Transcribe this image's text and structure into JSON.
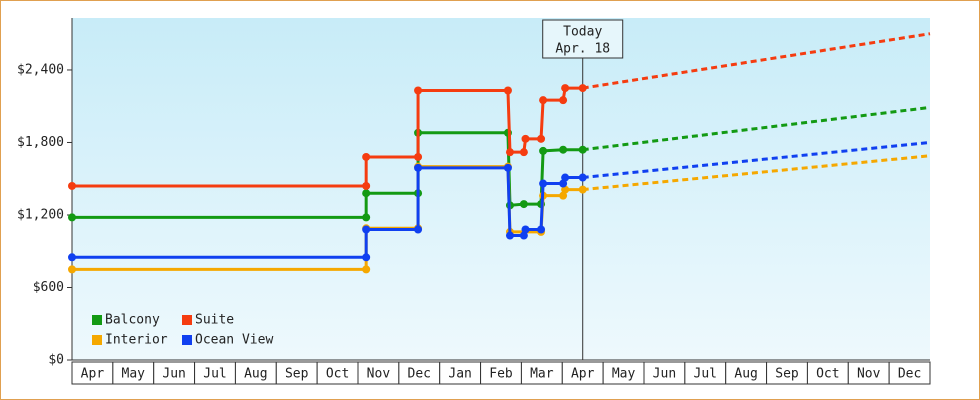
{
  "chart_data": {
    "type": "line",
    "annotation": [
      "Today",
      "Apr. 18"
    ],
    "categories": [
      "Apr",
      "May",
      "Jun",
      "Jul",
      "Aug",
      "Sep",
      "Oct",
      "Nov",
      "Dec",
      "Jan",
      "Feb",
      "Mar",
      "Apr",
      "May",
      "Jun",
      "Jul",
      "Aug",
      "Sep",
      "Oct",
      "Nov",
      "Dec"
    ],
    "xlim": [
      0,
      21
    ],
    "ylim": [
      0,
      2830
    ],
    "yticks": [
      {
        "value": 0,
        "label": "$0"
      },
      {
        "value": 600,
        "label": "$600"
      },
      {
        "value": 1200,
        "label": "$1,200"
      },
      {
        "value": 1800,
        "label": "$1,800"
      },
      {
        "value": 2400,
        "label": "$2,400"
      }
    ],
    "series": [
      {
        "name": "Balcony",
        "color": "#139a13",
        "x": [
          0,
          7.2,
          7.2,
          8.47,
          8.47,
          10.67,
          10.72,
          11.06,
          11.48,
          11.53,
          12.02,
          12.5
        ],
        "values": [
          1180,
          1180,
          1380,
          1380,
          1880,
          1880,
          1280,
          1290,
          1290,
          1730,
          1740,
          1740
        ],
        "forecast": {
          "x": [
            12.5,
            21
          ],
          "values": [
            1740,
            2090
          ]
        }
      },
      {
        "name": "Suite",
        "color": "#f53c10",
        "x": [
          0,
          7.2,
          7.2,
          8.47,
          8.47,
          10.67,
          10.72,
          11.06,
          11.1,
          11.48,
          11.53,
          12.02,
          12.07,
          12.5
        ],
        "values": [
          1440,
          1440,
          1680,
          1680,
          2230,
          2230,
          1720,
          1720,
          1830,
          1830,
          2150,
          2150,
          2250,
          2250
        ],
        "forecast": {
          "x": [
            12.5,
            21
          ],
          "values": [
            2250,
            2700
          ]
        }
      },
      {
        "name": "Interior",
        "color": "#f5a800",
        "x": [
          0,
          7.2,
          7.2,
          8.47,
          8.47,
          10.67,
          10.72,
          11.48,
          11.53,
          12.02,
          12.07,
          12.5
        ],
        "values": [
          750,
          750,
          1090,
          1090,
          1600,
          1600,
          1060,
          1060,
          1360,
          1360,
          1410,
          1410
        ],
        "forecast": {
          "x": [
            12.5,
            21
          ],
          "values": [
            1410,
            1690
          ]
        }
      },
      {
        "name": "Ocean View",
        "color": "#1040f0",
        "x": [
          0,
          7.2,
          7.2,
          8.47,
          8.47,
          10.67,
          10.72,
          11.06,
          11.1,
          11.48,
          11.53,
          12.02,
          12.07,
          12.5
        ],
        "values": [
          850,
          850,
          1080,
          1080,
          1590,
          1590,
          1030,
          1030,
          1080,
          1080,
          1460,
          1460,
          1510,
          1510
        ],
        "forecast": {
          "x": [
            12.5,
            21
          ],
          "values": [
            1510,
            1800
          ]
        }
      }
    ]
  }
}
